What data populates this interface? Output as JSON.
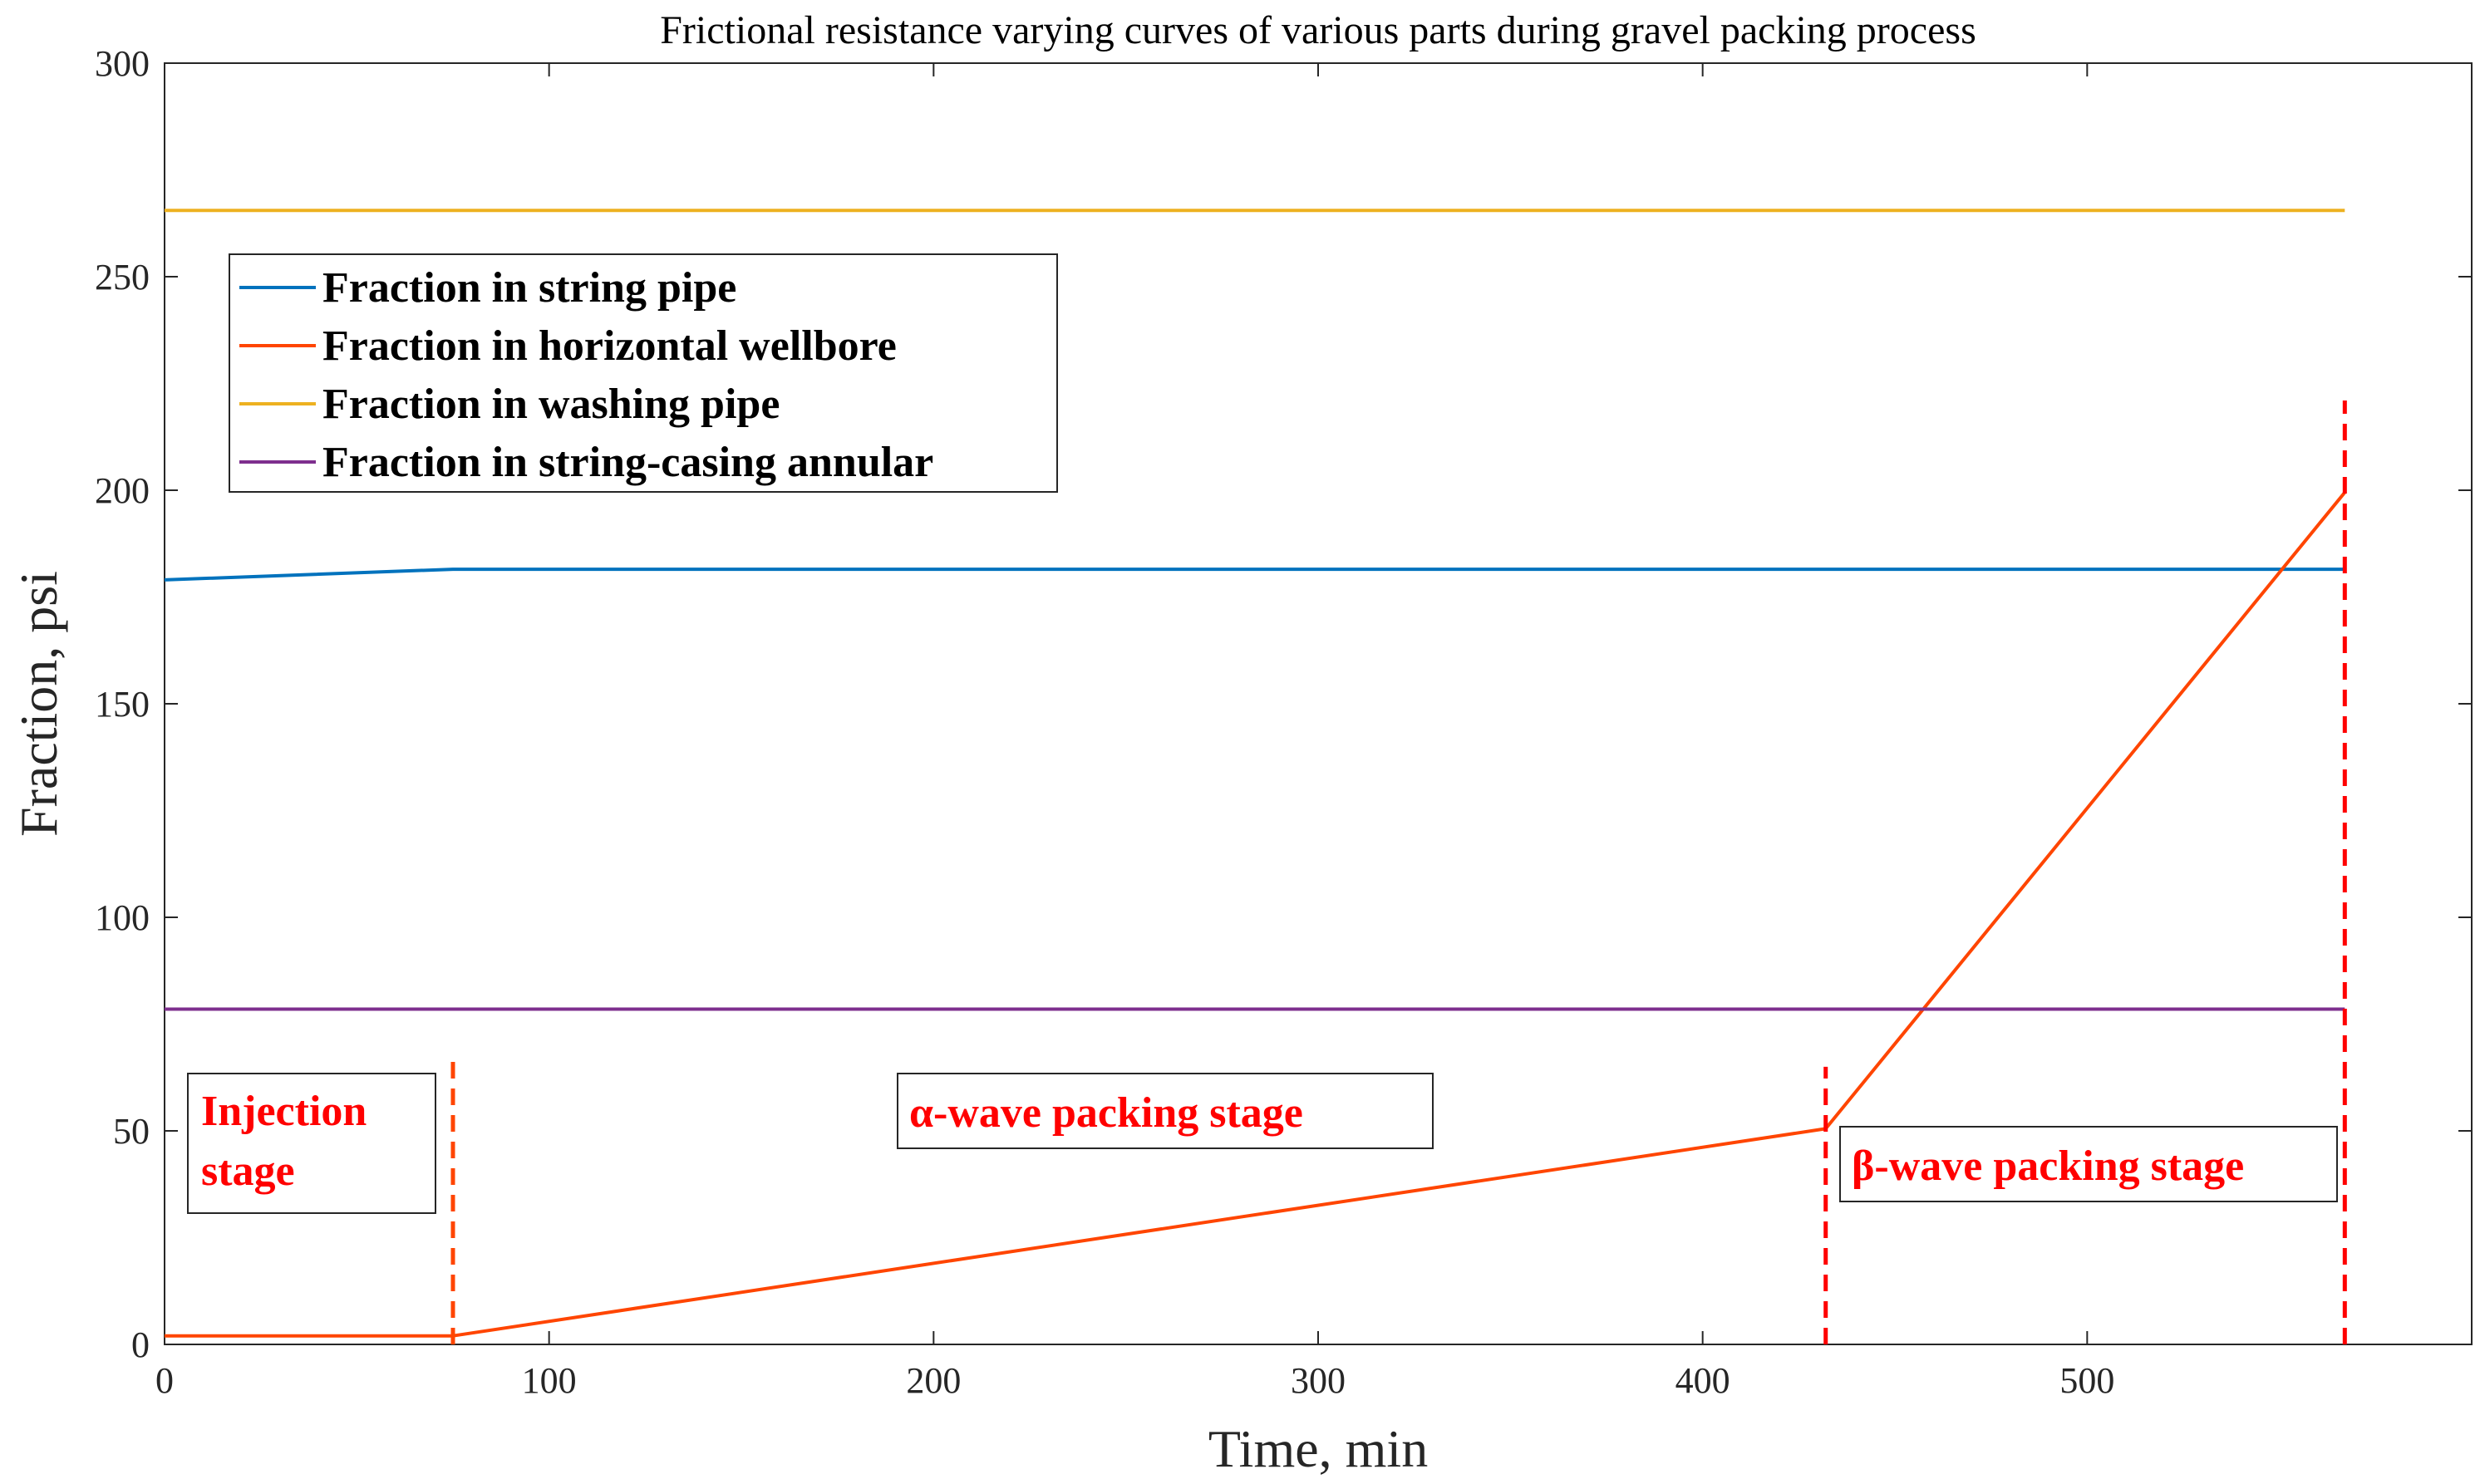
{
  "chart_data": {
    "type": "line",
    "title": "Frictional resistance varying curves of various parts during gravel packing process",
    "xlabel": "Time, min",
    "ylabel": "Fraction, psi",
    "xlim": [
      0,
      600
    ],
    "ylim": [
      0,
      300
    ],
    "xticks": [
      0,
      100,
      200,
      300,
      400,
      500
    ],
    "yticks": [
      0,
      50,
      100,
      150,
      200,
      250,
      300
    ],
    "grid": false,
    "legend_position": "top-left",
    "series": [
      {
        "name": "Fraction in string pipe",
        "color": "#0072BD",
        "x": [
          0,
          75,
          567
        ],
        "y": [
          179,
          181.5,
          181.5
        ]
      },
      {
        "name": "Fraction in horizontal wellbore",
        "color": "#FF4500",
        "x": [
          0,
          75,
          432,
          567
        ],
        "y": [
          2,
          2,
          50.5,
          199.5
        ]
      },
      {
        "name": "Fraction in washing pipe",
        "color": "#EDB120",
        "x": [
          0,
          567
        ],
        "y": [
          265.5,
          265.5
        ]
      },
      {
        "name": "Fraction in string-casing annular",
        "color": "#7E2F8E",
        "x": [
          0,
          567
        ],
        "y": [
          78.5,
          78.5
        ]
      }
    ],
    "stage_dividers": [
      {
        "x": 75,
        "y_range": [
          0,
          68
        ],
        "color": "#FF4500"
      },
      {
        "x": 432,
        "y_range": [
          0,
          65
        ],
        "color": "#FF0000"
      },
      {
        "x": 567,
        "y_range": [
          0,
          221
        ],
        "color": "#FF0000"
      }
    ],
    "annotations": [
      {
        "lines": [
          "Injection",
          "stage"
        ]
      },
      {
        "lines": [
          "α-wave packing stage"
        ]
      },
      {
        "lines": [
          "β-wave packing stage"
        ]
      }
    ]
  }
}
